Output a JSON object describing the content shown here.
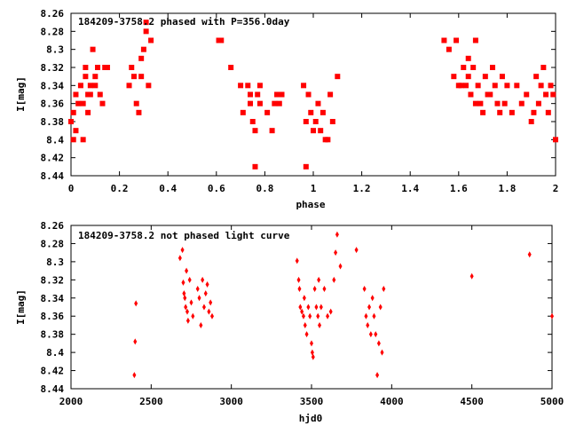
{
  "chart_data": [
    {
      "type": "scatter",
      "title": "184209-3758.2 phased with P=356.0day",
      "xlabel": "phase",
      "ylabel": "I[mag]",
      "xlim": [
        0,
        2
      ],
      "ylim": [
        8.26,
        8.44
      ],
      "y_inverted": true,
      "xticks": [
        "0",
        "0.2",
        "0.4",
        "0.6",
        "0.8",
        "1",
        "1.2",
        "1.4",
        "1.6",
        "1.8",
        "2"
      ],
      "xtick_values": [
        0,
        0.2,
        0.4,
        0.6,
        0.8,
        1.0,
        1.2,
        1.4,
        1.6,
        1.8,
        2.0
      ],
      "yticks": [
        "8.26",
        "8.28",
        "8.3",
        "8.32",
        "8.34",
        "8.36",
        "8.38",
        "8.4",
        "8.42",
        "8.44"
      ],
      "ytick_values": [
        8.26,
        8.28,
        8.3,
        8.32,
        8.34,
        8.36,
        8.38,
        8.4,
        8.42,
        8.44
      ],
      "point_color": "#ff0000",
      "x": [
        0.0,
        0.01,
        0.01,
        0.02,
        0.02,
        0.03,
        0.04,
        0.05,
        0.05,
        0.06,
        0.06,
        0.07,
        0.07,
        0.08,
        0.08,
        0.09,
        0.1,
        0.1,
        0.11,
        0.12,
        0.13,
        0.14,
        0.15,
        0.24,
        0.25,
        0.26,
        0.27,
        0.28,
        0.29,
        0.29,
        0.3,
        0.31,
        0.31,
        0.32,
        0.33,
        0.61,
        0.62,
        0.66,
        0.7,
        0.71,
        0.73,
        0.74,
        0.74,
        0.75,
        0.76,
        0.76,
        0.77,
        0.78,
        0.78,
        0.81,
        0.83,
        0.84,
        0.85,
        0.86,
        0.87,
        0.96,
        0.97,
        0.97,
        0.98,
        0.99,
        1.0,
        1.01,
        1.02,
        1.03,
        1.04,
        1.05,
        1.06,
        1.07,
        1.08,
        1.1,
        1.54,
        1.56,
        1.58,
        1.59,
        1.6,
        1.61,
        1.62,
        1.63,
        1.64,
        1.64,
        1.65,
        1.66,
        1.67,
        1.67,
        1.68,
        1.69,
        1.7,
        1.71,
        1.72,
        1.73,
        1.74,
        1.75,
        1.76,
        1.77,
        1.78,
        1.79,
        1.8,
        1.82,
        1.84,
        1.86,
        1.88,
        1.9,
        1.91,
        1.92,
        1.93,
        1.94,
        1.95,
        1.96,
        1.97,
        1.98,
        1.99,
        2.0
      ],
      "y": [
        8.38,
        8.4,
        8.37,
        8.39,
        8.35,
        8.36,
        8.34,
        8.4,
        8.36,
        8.33,
        8.32,
        8.37,
        8.35,
        8.34,
        8.35,
        8.3,
        8.34,
        8.33,
        8.32,
        8.35,
        8.36,
        8.32,
        8.32,
        8.34,
        8.32,
        8.33,
        8.36,
        8.37,
        8.31,
        8.33,
        8.3,
        8.28,
        8.27,
        8.34,
        8.29,
        8.29,
        8.29,
        8.32,
        8.34,
        8.37,
        8.34,
        8.36,
        8.35,
        8.38,
        8.43,
        8.39,
        8.35,
        8.36,
        8.34,
        8.37,
        8.39,
        8.36,
        8.35,
        8.36,
        8.35,
        8.34,
        8.43,
        8.38,
        8.35,
        8.37,
        8.39,
        8.38,
        8.36,
        8.39,
        8.37,
        8.4,
        8.4,
        8.35,
        8.38,
        8.33,
        8.29,
        8.3,
        8.33,
        8.29,
        8.34,
        8.34,
        8.32,
        8.34,
        8.31,
        8.33,
        8.35,
        8.32,
        8.29,
        8.36,
        8.34,
        8.36,
        8.37,
        8.33,
        8.35,
        8.35,
        8.32,
        8.34,
        8.36,
        8.37,
        8.33,
        8.36,
        8.34,
        8.37,
        8.34,
        8.36,
        8.35,
        8.38,
        8.37,
        8.33,
        8.36,
        8.34,
        8.32,
        8.35,
        8.37,
        8.34,
        8.35,
        8.4
      ]
    },
    {
      "type": "scatter",
      "title": "184209-3758.2 not phased light curve",
      "xlabel": "hjd0",
      "ylabel": "I[mag]",
      "xlim": [
        2000,
        5000
      ],
      "ylim": [
        8.26,
        8.44
      ],
      "y_inverted": true,
      "xticks": [
        "2000",
        "2500",
        "3000",
        "3500",
        "4000",
        "4500",
        "5000"
      ],
      "xtick_values": [
        2000,
        2500,
        3000,
        3500,
        4000,
        4500,
        5000
      ],
      "yticks": [
        "8.26",
        "8.28",
        "8.3",
        "8.32",
        "8.34",
        "8.36",
        "8.38",
        "8.4",
        "8.42",
        "8.44"
      ],
      "ytick_values": [
        8.26,
        8.28,
        8.3,
        8.32,
        8.34,
        8.36,
        8.38,
        8.4,
        8.42,
        8.44
      ],
      "point_color": "#ff0000",
      "x": [
        2395,
        2400,
        2405,
        2680,
        2695,
        2700,
        2705,
        2710,
        2715,
        2720,
        2725,
        2730,
        2740,
        2750,
        2760,
        2790,
        2800,
        2810,
        2820,
        2830,
        2840,
        2850,
        2860,
        2870,
        2880,
        3410,
        3420,
        3425,
        3430,
        3440,
        3450,
        3455,
        3460,
        3470,
        3480,
        3490,
        3500,
        3505,
        3510,
        3520,
        3530,
        3540,
        3545,
        3550,
        3560,
        3580,
        3600,
        3620,
        3640,
        3650,
        3660,
        3680,
        3780,
        3830,
        3840,
        3850,
        3860,
        3870,
        3880,
        3890,
        3900,
        3910,
        3920,
        3930,
        3940,
        3950,
        4500,
        4860,
        5000
      ],
      "y": [
        8.425,
        8.388,
        8.346,
        8.296,
        8.287,
        8.323,
        8.335,
        8.34,
        8.35,
        8.31,
        8.355,
        8.365,
        8.32,
        8.345,
        8.36,
        8.33,
        8.34,
        8.37,
        8.32,
        8.35,
        8.335,
        8.325,
        8.355,
        8.345,
        8.36,
        8.299,
        8.32,
        8.33,
        8.35,
        8.355,
        8.36,
        8.34,
        8.37,
        8.38,
        8.35,
        8.36,
        8.39,
        8.4,
        8.405,
        8.33,
        8.35,
        8.36,
        8.32,
        8.37,
        8.35,
        8.33,
        8.36,
        8.355,
        8.32,
        8.29,
        8.27,
        8.305,
        8.287,
        8.33,
        8.36,
        8.37,
        8.35,
        8.38,
        8.34,
        8.36,
        8.38,
        8.425,
        8.39,
        8.35,
        8.4,
        8.33,
        8.316,
        8.292,
        8.36
      ]
    }
  ]
}
